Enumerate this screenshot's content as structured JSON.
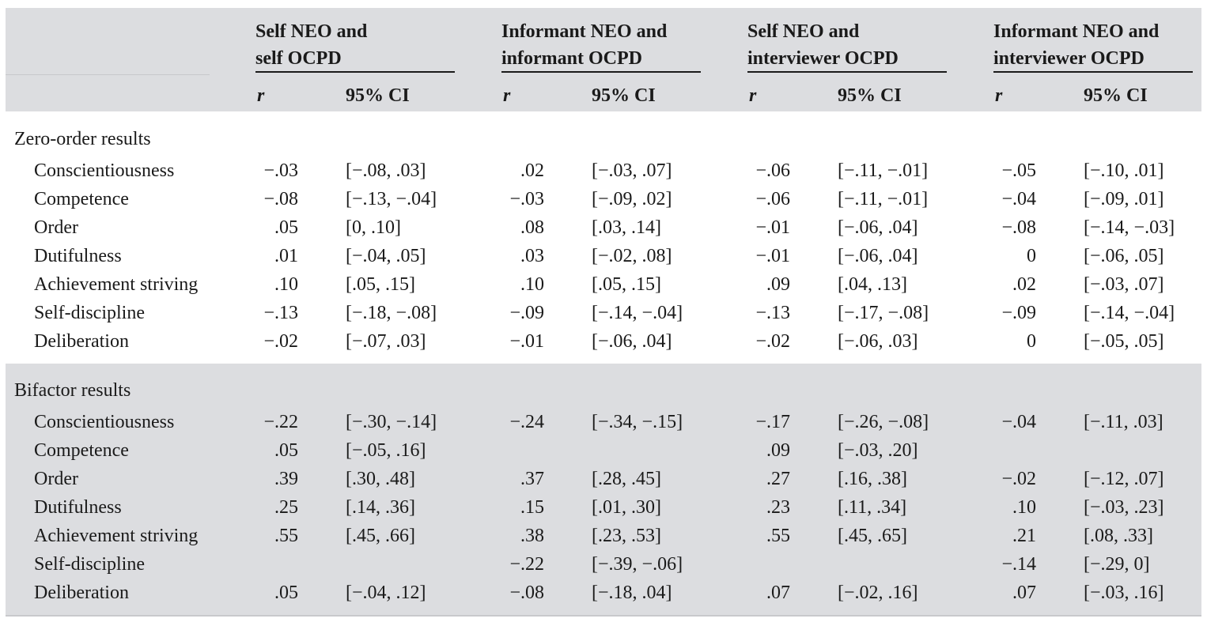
{
  "groups": [
    {
      "line1": "Self NEO and",
      "line2": "self OCPD"
    },
    {
      "line1": "Informant NEO and",
      "line2": "informant OCPD"
    },
    {
      "line1": "Self NEO and",
      "line2": "interviewer OCPD"
    },
    {
      "line1": "Informant NEO and",
      "line2": "interviewer OCPD"
    }
  ],
  "subheaders": {
    "r": "r",
    "ci": "95% CI"
  },
  "sections": [
    {
      "title": "Zero-order results",
      "rows": [
        {
          "label": "Conscientiousness",
          "cells": [
            [
              "−.03",
              "[−.08, .03]"
            ],
            [
              ".02",
              "[−.03, .07]"
            ],
            [
              "−.06",
              "[−.11, −.01]"
            ],
            [
              "−.05",
              "[−.10, .01]"
            ]
          ]
        },
        {
          "label": "Competence",
          "cells": [
            [
              "−.08",
              "[−.13, −.04]"
            ],
            [
              "−.03",
              "[−.09, .02]"
            ],
            [
              "−.06",
              "[−.11, −.01]"
            ],
            [
              "−.04",
              "[−.09, .01]"
            ]
          ]
        },
        {
          "label": "Order",
          "cells": [
            [
              ".05",
              "[0, .10]"
            ],
            [
              ".08",
              "[.03, .14]"
            ],
            [
              "−.01",
              "[−.06, .04]"
            ],
            [
              "−.08",
              "[−.14, −.03]"
            ]
          ]
        },
        {
          "label": "Dutifulness",
          "cells": [
            [
              ".01",
              "[−.04, .05]"
            ],
            [
              ".03",
              "[−.02, .08]"
            ],
            [
              "−.01",
              "[−.06, .04]"
            ],
            [
              "0",
              "[−.06, .05]"
            ]
          ]
        },
        {
          "label": "Achievement striving",
          "cells": [
            [
              ".10",
              "[.05, .15]"
            ],
            [
              ".10",
              "[.05, .15]"
            ],
            [
              ".09",
              "[.04, .13]"
            ],
            [
              ".02",
              "[−.03, .07]"
            ]
          ]
        },
        {
          "label": "Self-discipline",
          "cells": [
            [
              "−.13",
              "[−.18, −.08]"
            ],
            [
              "−.09",
              "[−.14, −.04]"
            ],
            [
              "−.13",
              "[−.17, −.08]"
            ],
            [
              "−.09",
              "[−.14, −.04]"
            ]
          ]
        },
        {
          "label": "Deliberation",
          "cells": [
            [
              "−.02",
              "[−.07, .03]"
            ],
            [
              "−.01",
              "[−.06, .04]"
            ],
            [
              "−.02",
              "[−.06, .03]"
            ],
            [
              "0",
              "[−.05, .05]"
            ]
          ]
        }
      ]
    },
    {
      "title": "Bifactor results",
      "rows": [
        {
          "label": "Conscientiousness",
          "cells": [
            [
              "−.22",
              "[−.30, −.14]"
            ],
            [
              "−.24",
              "[−.34, −.15]"
            ],
            [
              "−.17",
              "[−.26, −.08]"
            ],
            [
              "−.04",
              "[−.11, .03]"
            ]
          ]
        },
        {
          "label": "Competence",
          "cells": [
            [
              ".05",
              "[−.05, .16]"
            ],
            [
              "",
              ""
            ],
            [
              ".09",
              "[−.03, .20]"
            ],
            [
              "",
              ""
            ]
          ]
        },
        {
          "label": "Order",
          "cells": [
            [
              ".39",
              "[.30, .48]"
            ],
            [
              ".37",
              "[.28, .45]"
            ],
            [
              ".27",
              "[.16, .38]"
            ],
            [
              "−.02",
              "[−.12, .07]"
            ]
          ]
        },
        {
          "label": "Dutifulness",
          "cells": [
            [
              ".25",
              "[.14, .36]"
            ],
            [
              ".15",
              "[.01, .30]"
            ],
            [
              ".23",
              "[.11, .34]"
            ],
            [
              ".10",
              "[−.03, .23]"
            ]
          ]
        },
        {
          "label": "Achievement striving",
          "cells": [
            [
              ".55",
              "[.45, .66]"
            ],
            [
              ".38",
              "[.23, .53]"
            ],
            [
              ".55",
              "[.45, .65]"
            ],
            [
              ".21",
              "[.08, .33]"
            ]
          ]
        },
        {
          "label": "Self-discipline",
          "cells": [
            [
              "",
              ""
            ],
            [
              "−.22",
              "[−.39, −.06]"
            ],
            [
              "",
              ""
            ],
            [
              "−.14",
              "[−.29, 0]"
            ]
          ]
        },
        {
          "label": "Deliberation",
          "cells": [
            [
              ".05",
              "[−.04, .12]"
            ],
            [
              "−.08",
              "[−.18, .04]"
            ],
            [
              ".07",
              "[−.02, .16]"
            ],
            [
              ".07",
              "[−.03, .16]"
            ]
          ]
        }
      ]
    }
  ]
}
